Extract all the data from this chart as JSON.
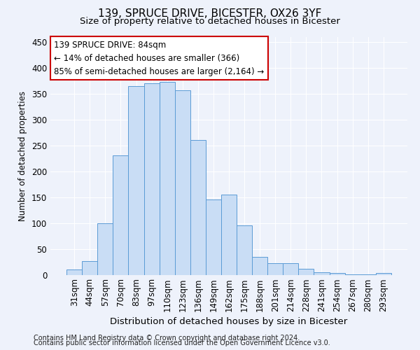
{
  "title1": "139, SPRUCE DRIVE, BICESTER, OX26 3YF",
  "title2": "Size of property relative to detached houses in Bicester",
  "xlabel": "Distribution of detached houses by size in Bicester",
  "ylabel": "Number of detached properties",
  "annotation_line1": "139 SPRUCE DRIVE: 84sqm",
  "annotation_line2": "← 14% of detached houses are smaller (366)",
  "annotation_line3": "85% of semi-detached houses are larger (2,164) →",
  "footer1": "Contains HM Land Registry data © Crown copyright and database right 2024.",
  "footer2": "Contains public sector information licensed under the Open Government Licence v3.0.",
  "categories": [
    "31sqm",
    "44sqm",
    "57sqm",
    "70sqm",
    "83sqm",
    "97sqm",
    "110sqm",
    "123sqm",
    "136sqm",
    "149sqm",
    "162sqm",
    "175sqm",
    "188sqm",
    "201sqm",
    "214sqm",
    "228sqm",
    "241sqm",
    "254sqm",
    "267sqm",
    "280sqm",
    "293sqm"
  ],
  "values": [
    10,
    27,
    100,
    230,
    365,
    370,
    373,
    357,
    260,
    146,
    155,
    95,
    34,
    22,
    22,
    11,
    5,
    4,
    1,
    1,
    3
  ],
  "bar_color": "#c9ddf5",
  "bar_edge_color": "#5b9bd5",
  "annotation_box_color": "#ffffff",
  "annotation_box_edge": "#cc0000",
  "background_color": "#eef2fb",
  "grid_color": "#ffffff",
  "ylim": [
    0,
    460
  ],
  "yticks": [
    0,
    50,
    100,
    150,
    200,
    250,
    300,
    350,
    400,
    450
  ],
  "title1_fontsize": 11,
  "title2_fontsize": 9.5,
  "xlabel_fontsize": 9.5,
  "ylabel_fontsize": 8.5,
  "tick_fontsize": 8.5,
  "ann_fontsize": 8.5,
  "footer_fontsize": 7
}
